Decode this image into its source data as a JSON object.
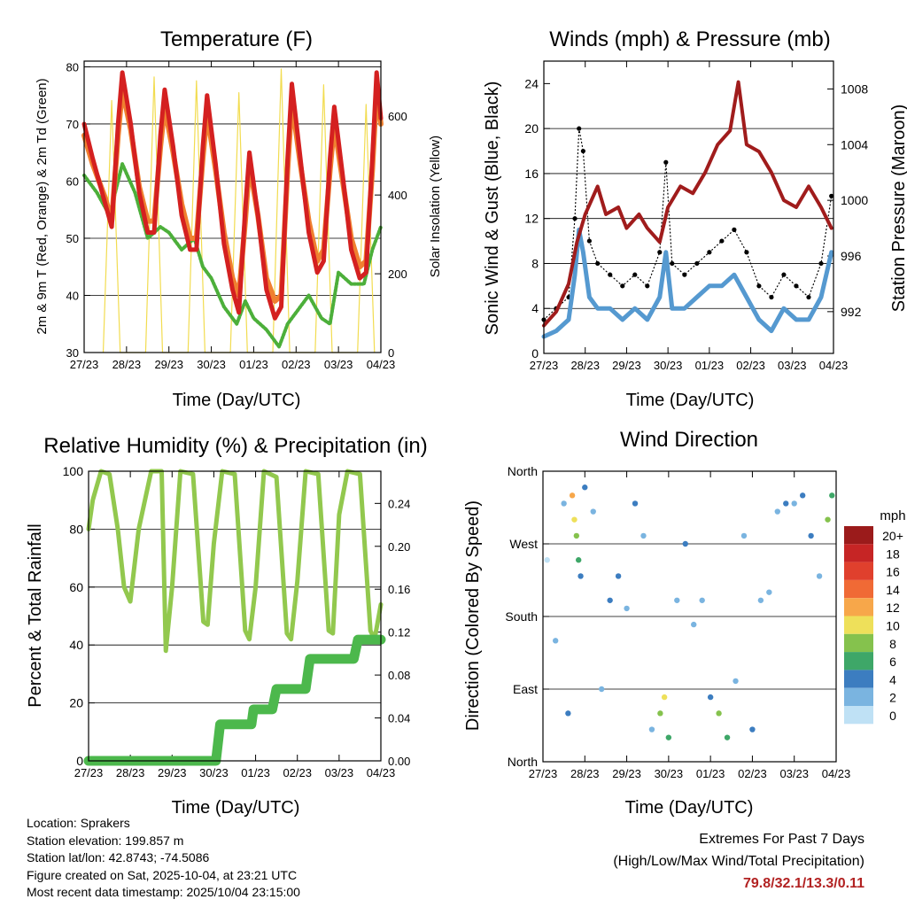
{
  "charts": {
    "temperature": {
      "title": "Temperature (F)",
      "ylabel": "2m & 9m T (Red, Orange) & 2m Td (Green)",
      "y2label": "Solar Insolation (Yellow)",
      "xlabel": "Time (Day/UTC)"
    },
    "winds": {
      "title": "Winds (mph) & Pressure (mb)",
      "ylabel": "Sonic Wind & Gust (Blue, Black)",
      "y2label": "Station Pressure (Maroon)",
      "xlabel": "Time (Day/UTC)"
    },
    "humidity": {
      "title": "Relative Humidity (%) & Precipitation (in)",
      "ylabel": "Percent & Total Rainfall",
      "xlabel": "Time (Day/UTC)"
    },
    "direction": {
      "title": "Wind Direction",
      "ylabel": "Direction (Colored By Speed)",
      "xlabel": "Time (Day/UTC)",
      "legend_unit": "mph"
    }
  },
  "info": {
    "location": "Location: Sprakers",
    "elevation": "Station elevation: 199.857 m",
    "latlon": "Station lat/lon: 42.8743; -74.5086",
    "created": "Figure created on Sat, 2025-10-04, at 23:21 UTC",
    "recent": "Most recent data timestamp: 2025/10/04 23:15:00"
  },
  "extremes": {
    "title": "Extremes For Past 7 Days",
    "subtitle": "(High/Low/Max Wind/Total Precipitation)",
    "values": "79.8/32.1/13.3/0.11"
  },
  "colors": {
    "temp_2m": "#d42020",
    "temp_9m": "#f08030",
    "dewpoint": "#4caf3a",
    "solar": "#f2dc50",
    "wind": "#5599d0",
    "gust": "#000000",
    "pressure": "#a01c1c",
    "rh": "#92c84e",
    "precip": "#4cb84c"
  },
  "chart_data": [
    {
      "type": "line",
      "id": "temperature",
      "title": "Temperature (F)",
      "xlabel": "Time (Day/UTC)",
      "ylabel": "2m & 9m T (Red, Orange) & 2m Td (Green)",
      "y2label": "Solar Insolation (Yellow)",
      "x_ticks": [
        "27/23",
        "28/23",
        "29/23",
        "30/23",
        "01/23",
        "02/23",
        "03/23",
        "04/23"
      ],
      "xlim": [
        0,
        7
      ],
      "ylim": [
        30,
        81
      ],
      "y_ticks": [
        30,
        40,
        50,
        60,
        70,
        80
      ],
      "y2lim": [
        0,
        740
      ],
      "y2_ticks": [
        0,
        200,
        400,
        600
      ],
      "series": [
        {
          "name": "2m T",
          "axis": "y",
          "color": "#d42020",
          "x": [
            0,
            0.2,
            0.5,
            0.65,
            0.8,
            0.9,
            1.1,
            1.3,
            1.5,
            1.65,
            1.8,
            1.9,
            2.1,
            2.3,
            2.5,
            2.65,
            2.8,
            2.9,
            3.1,
            3.3,
            3.5,
            3.65,
            3.8,
            3.9,
            4.1,
            4.3,
            4.5,
            4.65,
            4.8,
            4.9,
            5.1,
            5.3,
            5.5,
            5.65,
            5.8,
            5.9,
            6.1,
            6.3,
            6.5,
            6.65,
            6.8,
            6.9,
            7.0
          ],
          "y": [
            70,
            64,
            56,
            52,
            70,
            79,
            70,
            58,
            51,
            51,
            68,
            76,
            66,
            54,
            48,
            48,
            66,
            75,
            63,
            49,
            41,
            37,
            55,
            65,
            54,
            41,
            36,
            38,
            64,
            77,
            64,
            51,
            44,
            46,
            64,
            73,
            61,
            48,
            43,
            44,
            64,
            79,
            71
          ]
        },
        {
          "name": "9m T",
          "axis": "y",
          "color": "#f08030",
          "x": [
            0,
            0.2,
            0.5,
            0.65,
            0.8,
            0.9,
            1.1,
            1.3,
            1.5,
            1.65,
            1.8,
            1.9,
            2.1,
            2.3,
            2.5,
            2.65,
            2.8,
            2.9,
            3.1,
            3.3,
            3.5,
            3.65,
            3.8,
            3.9,
            4.1,
            4.3,
            4.5,
            4.65,
            4.8,
            4.9,
            5.1,
            5.3,
            5.5,
            5.65,
            5.8,
            5.9,
            6.1,
            6.3,
            6.5,
            6.65,
            6.8,
            6.9,
            7.0
          ],
          "y": [
            68,
            63,
            57,
            53,
            68,
            76,
            69,
            59,
            53,
            53,
            66,
            73,
            65,
            56,
            50,
            50,
            64,
            72,
            62,
            51,
            43,
            40,
            53,
            63,
            54,
            43,
            39,
            40,
            62,
            74,
            63,
            53,
            46,
            48,
            62,
            70,
            60,
            50,
            45,
            46,
            62,
            76,
            70
          ]
        },
        {
          "name": "2m Td",
          "axis": "y",
          "color": "#4caf3a",
          "x": [
            0,
            0.3,
            0.6,
            0.8,
            0.9,
            1.2,
            1.5,
            1.8,
            2.0,
            2.3,
            2.6,
            2.8,
            3.0,
            3.3,
            3.6,
            3.8,
            4.0,
            4.3,
            4.6,
            4.8,
            5.0,
            5.3,
            5.6,
            5.8,
            6.0,
            6.3,
            6.6,
            6.8,
            7.0
          ],
          "y": [
            61,
            58,
            54,
            60,
            63,
            58,
            50,
            52,
            51,
            48,
            50,
            45,
            43,
            38,
            35,
            39,
            36,
            34,
            31,
            35,
            37,
            40,
            36,
            35,
            44,
            42,
            42,
            48,
            52
          ]
        },
        {
          "name": "Solar Insolation",
          "axis": "y2",
          "color": "#f2dc50",
          "x": [
            0.45,
            0.65,
            0.85,
            1.45,
            1.65,
            1.85,
            2.45,
            2.65,
            2.85,
            3.45,
            3.65,
            3.85,
            4.45,
            4.65,
            4.85,
            5.45,
            5.65,
            5.85,
            6.45,
            6.65,
            6.85
          ],
          "y": [
            0,
            640,
            0,
            0,
            700,
            0,
            0,
            690,
            0,
            0,
            660,
            0,
            0,
            720,
            0,
            0,
            680,
            0,
            0,
            630,
            0
          ]
        }
      ]
    },
    {
      "type": "line",
      "id": "winds",
      "title": "Winds (mph) & Pressure (mb)",
      "xlabel": "Time (Day/UTC)",
      "ylabel": "Sonic Wind & Gust (Blue, Black)",
      "y2label": "Station Pressure (Maroon)",
      "x_ticks": [
        "27/23",
        "28/23",
        "29/23",
        "30/23",
        "01/23",
        "02/23",
        "03/23",
        "04/23"
      ],
      "xlim": [
        0,
        7
      ],
      "ylim": [
        0,
        26
      ],
      "y_ticks": [
        0,
        4,
        8,
        12,
        16,
        20,
        24
      ],
      "y2lim": [
        989,
        1010
      ],
      "y2_ticks": [
        992,
        996,
        1000,
        1004,
        1008
      ],
      "series": [
        {
          "name": "Gust",
          "axis": "y",
          "color": "#000000",
          "x": [
            0,
            0.3,
            0.6,
            0.75,
            0.85,
            0.95,
            1.1,
            1.3,
            1.6,
            1.9,
            2.2,
            2.5,
            2.8,
            2.95,
            3.1,
            3.4,
            3.7,
            4.0,
            4.3,
            4.6,
            4.9,
            5.2,
            5.5,
            5.8,
            6.1,
            6.4,
            6.7,
            6.95
          ],
          "y": [
            3,
            4,
            5,
            12,
            20,
            18,
            10,
            8,
            7,
            6,
            7,
            6,
            9,
            17,
            8,
            7,
            8,
            9,
            10,
            11,
            9,
            6,
            5,
            7,
            6,
            5,
            8,
            14
          ]
        },
        {
          "name": "Wind",
          "axis": "y",
          "color": "#5599d0",
          "x": [
            0,
            0.3,
            0.6,
            0.75,
            0.85,
            0.95,
            1.1,
            1.3,
            1.6,
            1.9,
            2.2,
            2.5,
            2.8,
            2.95,
            3.1,
            3.4,
            3.7,
            4.0,
            4.3,
            4.6,
            4.9,
            5.2,
            5.5,
            5.8,
            6.1,
            6.4,
            6.7,
            6.95
          ],
          "y": [
            1.5,
            2,
            3,
            7,
            11,
            9,
            5,
            4,
            4,
            3,
            4,
            3,
            5,
            9,
            4,
            4,
            5,
            6,
            6,
            7,
            5,
            3,
            2,
            4,
            3,
            3,
            5,
            9
          ]
        },
        {
          "name": "Station Pressure",
          "axis": "y2",
          "color": "#a01c1c",
          "x": [
            0,
            0.3,
            0.6,
            0.8,
            1.0,
            1.3,
            1.5,
            1.8,
            2.0,
            2.3,
            2.5,
            2.8,
            3.0,
            3.3,
            3.6,
            3.9,
            4.2,
            4.5,
            4.7,
            4.9,
            5.2,
            5.5,
            5.8,
            6.1,
            6.4,
            6.7,
            6.95
          ],
          "y": [
            991,
            992,
            994,
            997,
            999,
            1001,
            999,
            999.5,
            998,
            999,
            998,
            997,
            999.5,
            1001,
            1000.5,
            1002,
            1004,
            1005,
            1008.5,
            1004,
            1003.5,
            1002,
            1000,
            999.5,
            1001,
            999.5,
            998
          ]
        }
      ]
    },
    {
      "type": "line",
      "id": "humidity",
      "title": "Relative Humidity (%) & Precipitation (in)",
      "xlabel": "Time (Day/UTC)",
      "ylabel": "Percent & Total Rainfall",
      "x_ticks": [
        "27/23",
        "28/23",
        "29/23",
        "30/23",
        "01/23",
        "02/23",
        "03/23",
        "04/23"
      ],
      "xlim": [
        0,
        7
      ],
      "ylim": [
        0,
        100
      ],
      "y_ticks": [
        0,
        20,
        40,
        60,
        80,
        100
      ],
      "y2lim": [
        0,
        0.27
      ],
      "y2_ticks": [
        0.0,
        0.04,
        0.08,
        0.12,
        0.16,
        0.2,
        0.24
      ],
      "series": [
        {
          "name": "RH",
          "axis": "y",
          "color": "#92c84e",
          "x": [
            0,
            0.1,
            0.3,
            0.5,
            0.7,
            0.85,
            1.0,
            1.2,
            1.5,
            1.75,
            1.85,
            2.0,
            2.2,
            2.5,
            2.75,
            2.85,
            3.0,
            3.2,
            3.5,
            3.75,
            3.85,
            4.0,
            4.2,
            4.5,
            4.75,
            4.85,
            5.0,
            5.2,
            5.5,
            5.75,
            5.85,
            6.0,
            6.2,
            6.5,
            6.75,
            6.85,
            7.0
          ],
          "y": [
            80,
            90,
            100,
            99,
            80,
            60,
            55,
            80,
            100,
            100,
            38,
            60,
            100,
            99,
            48,
            47,
            75,
            100,
            99,
            45,
            42,
            60,
            100,
            98,
            44,
            42,
            62,
            100,
            99,
            45,
            44,
            85,
            100,
            99,
            45,
            42,
            54
          ]
        },
        {
          "name": "Total Rainfall",
          "axis": "y2",
          "color": "#4cb84c",
          "x": [
            0,
            3.05,
            3.15,
            3.9,
            3.95,
            4.4,
            4.5,
            5.2,
            5.3,
            6.35,
            6.45,
            7.0
          ],
          "y": [
            0,
            0,
            0.034,
            0.034,
            0.048,
            0.048,
            0.067,
            0.067,
            0.095,
            0.095,
            0.113,
            0.113
          ]
        }
      ]
    },
    {
      "type": "scatter",
      "id": "direction",
      "title": "Wind Direction",
      "xlabel": "Time (Day/UTC)",
      "ylabel": "Direction (Colored By Speed)",
      "x_ticks": [
        "27/23",
        "28/23",
        "29/23",
        "30/23",
        "01/23",
        "02/23",
        "03/23",
        "04/23"
      ],
      "xlim": [
        0,
        7
      ],
      "y_ticks": [
        "North",
        "East",
        "South",
        "West",
        "North"
      ],
      "ylim": [
        0,
        360
      ],
      "legend_title": "mph",
      "legend_labels": [
        "20+",
        "18",
        "16",
        "14",
        "12",
        "10",
        "8",
        "6",
        "4",
        "2",
        "0"
      ],
      "legend_colors": [
        "#9b1b1b",
        "#c62525",
        "#e0402d",
        "#f06a35",
        "#f7a74a",
        "#eee05a",
        "#85c24d",
        "#3ea768",
        "#3c7dc0",
        "#7ab4e0",
        "#bfe1f5"
      ],
      "points": {
        "x": [
          0.1,
          0.3,
          0.5,
          0.6,
          0.7,
          0.75,
          0.8,
          0.85,
          0.9,
          1.0,
          1.2,
          1.4,
          1.6,
          1.8,
          2.0,
          2.2,
          2.4,
          2.6,
          2.8,
          2.9,
          3.0,
          3.2,
          3.4,
          3.6,
          3.8,
          4.0,
          4.2,
          4.4,
          4.6,
          4.8,
          5.0,
          5.2,
          5.4,
          5.6,
          5.8,
          6.0,
          6.2,
          6.4,
          6.6,
          6.8,
          6.9
        ],
        "y": [
          250,
          150,
          320,
          60,
          330,
          300,
          280,
          250,
          230,
          340,
          310,
          90,
          200,
          230,
          190,
          320,
          280,
          40,
          60,
          80,
          30,
          200,
          270,
          170,
          200,
          80,
          60,
          30,
          100,
          280,
          40,
          200,
          210,
          310,
          320,
          320,
          330,
          280,
          230,
          300,
          330
        ],
        "speed": [
          1,
          2,
          3,
          4,
          12,
          10,
          8,
          6,
          4,
          4,
          3,
          3,
          4,
          5,
          3,
          4,
          2,
          3,
          8,
          11,
          6,
          3,
          4,
          2,
          3,
          4,
          9,
          7,
          3,
          2,
          4,
          3,
          2,
          3,
          4,
          3,
          4,
          5,
          3,
          8,
          6
        ]
      }
    }
  ]
}
